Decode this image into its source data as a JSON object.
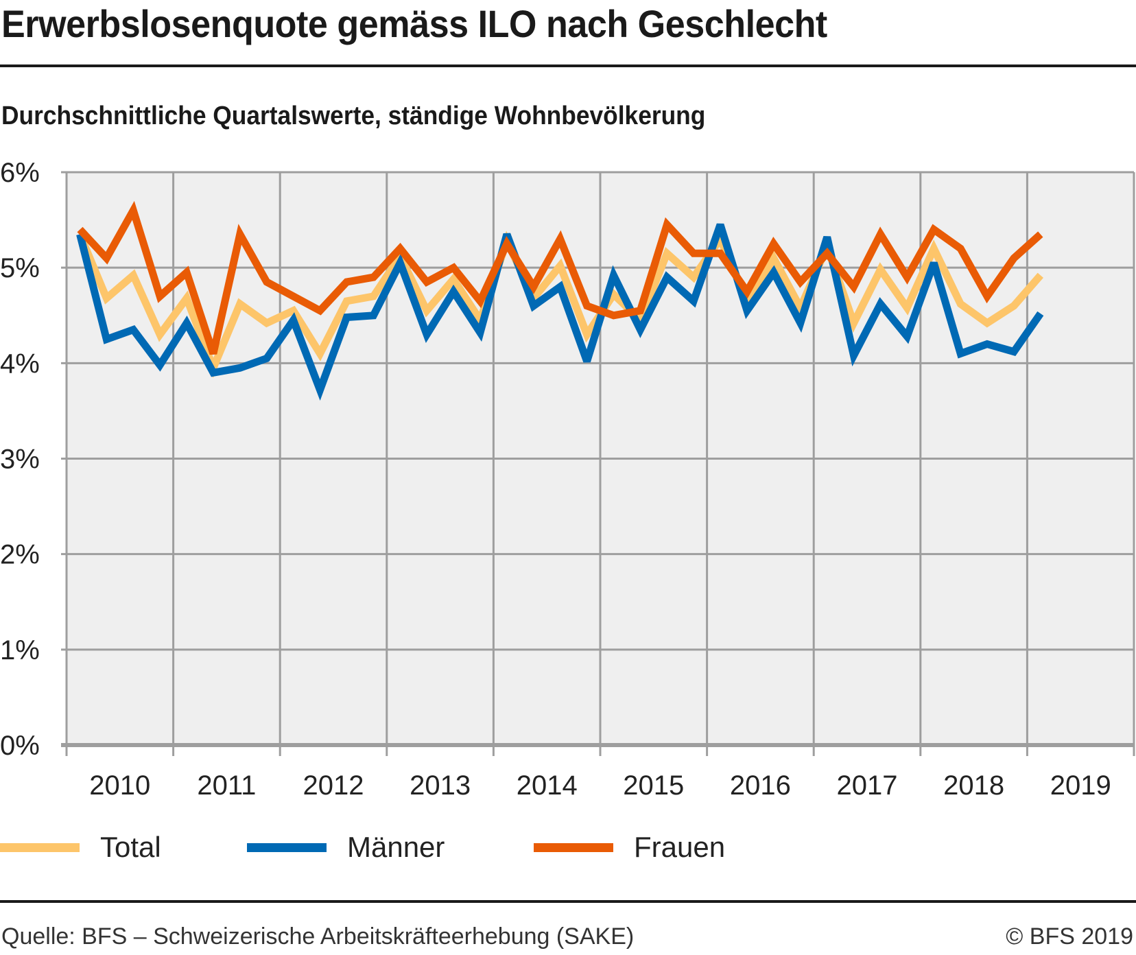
{
  "header": {
    "title": "Erwerbslosenquote gemäss ILO nach Geschlecht",
    "subtitle": "Durchschnittliche Quartalswerte, ständige Wohnbevölkerung"
  },
  "footer": {
    "source": "Quelle: BFS – Schweizerische Arbeitskräfteerhebung (SAKE)",
    "copyright": "© BFS 2019"
  },
  "colors": {
    "total": "#fdc56a",
    "maenner": "#0069b4",
    "frauen": "#e95b05",
    "plot_bg": "#efefef",
    "grid": "#9e9e9e"
  },
  "chart_data": {
    "type": "line",
    "title": "Erwerbslosenquote gemäss ILO nach Geschlecht",
    "subtitle": "Durchschnittliche Quartalswerte, ständige Wohnbevölkerung",
    "xlabel": "",
    "ylabel": "",
    "ylim": [
      0,
      6
    ],
    "yticks": [
      "0%",
      "1%",
      "2%",
      "3%",
      "4%",
      "5%",
      "6%"
    ],
    "xticks": [
      "2010",
      "2011",
      "2012",
      "2013",
      "2014",
      "2015",
      "2016",
      "2017",
      "2018",
      "2019"
    ],
    "x_unit": "quarter",
    "x_start": "2010 Q1",
    "x_end": "2019 Q1",
    "grid": true,
    "legend_position": "bottom-left",
    "series": [
      {
        "name": "Total",
        "color": "#fdc56a",
        "values": [
          5.35,
          4.68,
          4.92,
          4.3,
          4.68,
          3.95,
          4.62,
          4.42,
          4.55,
          4.1,
          4.65,
          4.7,
          5.12,
          4.55,
          4.88,
          4.45,
          5.28,
          4.68,
          5.02,
          4.3,
          4.72,
          4.45,
          5.15,
          4.9,
          5.3,
          4.65,
          5.1,
          4.58,
          5.22,
          4.42,
          4.98,
          4.58,
          5.2,
          4.62,
          4.42,
          4.6,
          4.92
        ]
      },
      {
        "name": "Männer",
        "color": "#0069b4",
        "values": [
          5.35,
          4.25,
          4.35,
          3.98,
          4.42,
          3.9,
          3.95,
          4.05,
          4.45,
          3.72,
          4.48,
          4.5,
          5.05,
          4.3,
          4.75,
          4.32,
          5.35,
          4.6,
          4.8,
          4.02,
          4.92,
          4.35,
          4.9,
          4.65,
          5.45,
          4.55,
          4.95,
          4.42,
          5.32,
          4.08,
          4.62,
          4.28,
          5.05,
          4.1,
          4.2,
          4.12,
          4.52
        ]
      },
      {
        "name": "Frauen",
        "color": "#e95b05",
        "values": [
          5.4,
          5.1,
          5.6,
          4.7,
          4.95,
          4.1,
          5.35,
          4.85,
          4.7,
          4.55,
          4.85,
          4.9,
          5.2,
          4.85,
          5.0,
          4.65,
          5.25,
          4.8,
          5.3,
          4.6,
          4.5,
          4.55,
          5.45,
          5.15,
          5.15,
          4.75,
          5.25,
          4.85,
          5.15,
          4.8,
          5.35,
          4.9,
          5.4,
          5.2,
          4.7,
          5.1,
          5.35
        ]
      }
    ]
  }
}
